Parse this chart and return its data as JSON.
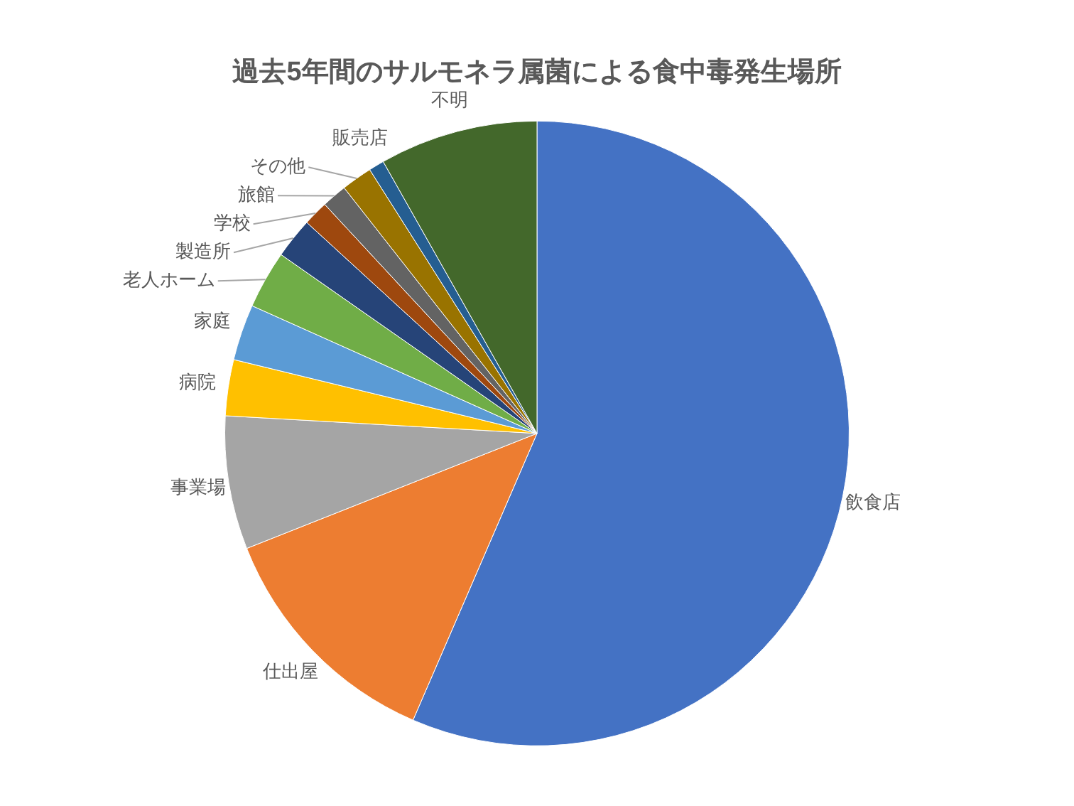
{
  "chart_data": {
    "type": "pie",
    "title": "過去5年間のサルモネラ属菌による食中毒発生場所",
    "categories": [
      "飲食店",
      "仕出屋",
      "事業場",
      "病院",
      "家庭",
      "老人ホーム",
      "製造所",
      "学校",
      "旅館",
      "その他",
      "販売店",
      "不明"
    ],
    "values": [
      56.5,
      12.5,
      6.9,
      2.9,
      2.9,
      3.0,
      2.1,
      1.3,
      1.3,
      1.6,
      0.8,
      8.2
    ],
    "colors": [
      "#4472c4",
      "#ed7d31",
      "#a5a5a5",
      "#ffc000",
      "#5b9bd5",
      "#70ad47",
      "#264478",
      "#9e480e",
      "#636363",
      "#997300",
      "#255e91",
      "#43682b"
    ],
    "legend": false
  }
}
